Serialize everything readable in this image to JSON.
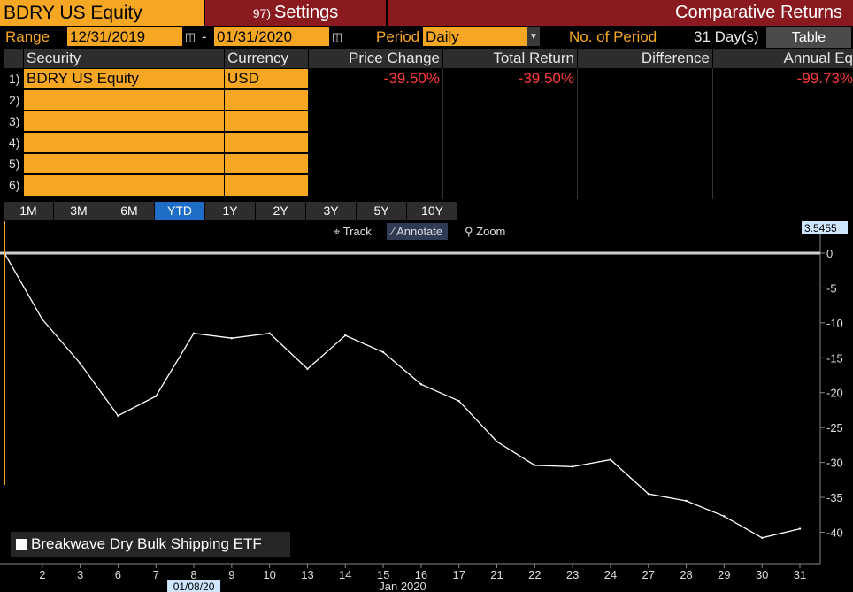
{
  "header": {
    "security_field": "BDRY US Equity",
    "settings_number": "97)",
    "settings_label": "Settings",
    "report_title": "Comparative Returns"
  },
  "range_row": {
    "range_label": "Range",
    "start_date": "12/31/2019",
    "dash": "-",
    "end_date": "01/31/2020",
    "period_label": "Period",
    "period_value": "Daily",
    "num_periods_label": "No. of Period",
    "num_periods_value": "31 Day(s)",
    "table_button": "Table"
  },
  "grid": {
    "columns": [
      "Security",
      "Currency",
      "Price Change",
      "Total Return",
      "Difference",
      "Annual Eq"
    ],
    "rows": [
      {
        "num": "1)",
        "security": "BDRY US Equity",
        "currency": "USD",
        "price_change": "-39.50%",
        "total_return": "-39.50%",
        "difference": "",
        "annual_eq": "-99.73%"
      },
      {
        "num": "2)",
        "security": "",
        "currency": "",
        "price_change": "",
        "total_return": "",
        "difference": "",
        "annual_eq": ""
      },
      {
        "num": "3)",
        "security": "",
        "currency": "",
        "price_change": "",
        "total_return": "",
        "difference": "",
        "annual_eq": ""
      },
      {
        "num": "4)",
        "security": "",
        "currency": "",
        "price_change": "",
        "total_return": "",
        "difference": "",
        "annual_eq": ""
      },
      {
        "num": "5)",
        "security": "",
        "currency": "",
        "price_change": "",
        "total_return": "",
        "difference": "",
        "annual_eq": ""
      },
      {
        "num": "6)",
        "security": "",
        "currency": "",
        "price_change": "",
        "total_return": "",
        "difference": "",
        "annual_eq": ""
      }
    ]
  },
  "period_buttons": [
    "1M",
    "3M",
    "6M",
    "YTD",
    "1Y",
    "2Y",
    "3Y",
    "5Y",
    "10Y"
  ],
  "active_period": "YTD",
  "chart_tools": {
    "track": "Track",
    "annotate": "Annotate",
    "zoom": "Zoom"
  },
  "colors": {
    "accent": "#f5a623",
    "header_red": "#8a1a1f",
    "negative": "#ff3b3b",
    "active_blue": "#1e6ec8"
  },
  "chart_data": {
    "type": "line",
    "title": "",
    "xlabel": "Jan 2020",
    "ylabel": "",
    "x": [
      "12/31",
      "2",
      "3",
      "6",
      "7",
      "8",
      "9",
      "10",
      "13",
      "14",
      "15",
      "16",
      "17",
      "21",
      "22",
      "23",
      "24",
      "27",
      "28",
      "29",
      "30",
      "31"
    ],
    "x_tick_labels": [
      "2",
      "3",
      "6",
      "7",
      "8",
      "9",
      "10",
      "13",
      "14",
      "15",
      "16",
      "17",
      "21",
      "22",
      "23",
      "24",
      "27",
      "28",
      "29",
      "30",
      "31"
    ],
    "series": [
      {
        "name": "Breakwave Dry Bulk Shipping ETF",
        "values": [
          0,
          -9.5,
          -15.8,
          -23.3,
          -20.5,
          -11.5,
          -12.2,
          -11.5,
          -16.6,
          -11.8,
          -14.2,
          -18.8,
          -21.2,
          -27.0,
          -30.4,
          -30.6,
          -29.6,
          -34.5,
          -35.5,
          -37.7,
          -40.8,
          -39.5
        ]
      }
    ],
    "ylim": [
      -44.5,
      3.5455
    ],
    "y_ticks": [
      0,
      -5,
      -10,
      -15,
      -20,
      -25,
      -30,
      -35,
      -40
    ],
    "last_price_tag": "3.5455",
    "crosshair_date": "01/08/20",
    "legend": "top-left over plot, bottom-left corner"
  }
}
